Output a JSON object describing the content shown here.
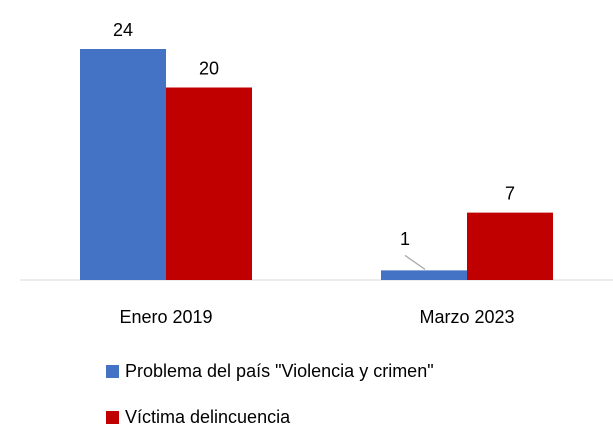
{
  "chart_data": {
    "type": "bar",
    "categories": [
      "Enero 2019",
      "Marzo 2023"
    ],
    "series": [
      {
        "name": "Problema del país \"Violencia y crimen\"",
        "color": "#4472c4",
        "values": [
          24,
          1
        ]
      },
      {
        "name": "Víctima delincuencia",
        "color": "#c00000",
        "values": [
          20,
          7
        ]
      }
    ],
    "legend": "bottom"
  }
}
